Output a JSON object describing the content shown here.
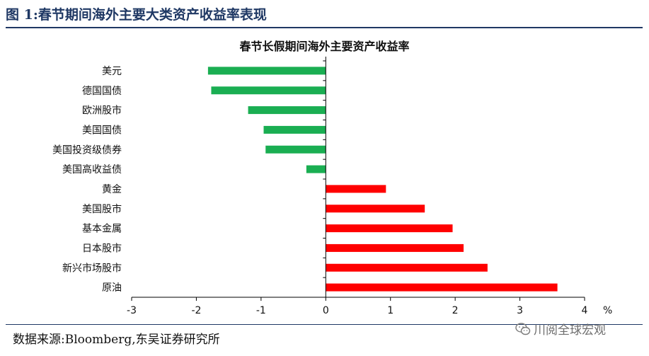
{
  "figure_title": "图 1:春节期间海外主要大类资产收益率表现",
  "source": "数据来源:Bloomberg,东吴证券研究所",
  "watermark": "川阅全球宏观",
  "colors": {
    "negative": "#1aae52",
    "positive": "#ff0000",
    "title": "#1f3864"
  },
  "chart_data": {
    "type": "bar",
    "orientation": "horizontal",
    "title": "春节长假期间海外主要资产收益率",
    "unit": "%",
    "categories": [
      "美元",
      "德国国债",
      "欧洲股市",
      "美国国债",
      "美国投资级债券",
      "美国高收益债",
      "黄金",
      "美国股市",
      "基本金属",
      "日本股市",
      "新兴市场股市",
      "原油"
    ],
    "values": [
      -1.82,
      -1.77,
      -1.2,
      -0.96,
      -0.93,
      -0.3,
      0.93,
      1.53,
      1.96,
      2.13,
      2.5,
      3.58
    ],
    "xlim": [
      -3,
      4
    ],
    "xticks": [
      -3,
      -2,
      -1,
      0,
      1,
      2,
      3,
      4
    ],
    "grid": false,
    "legend": "none"
  }
}
